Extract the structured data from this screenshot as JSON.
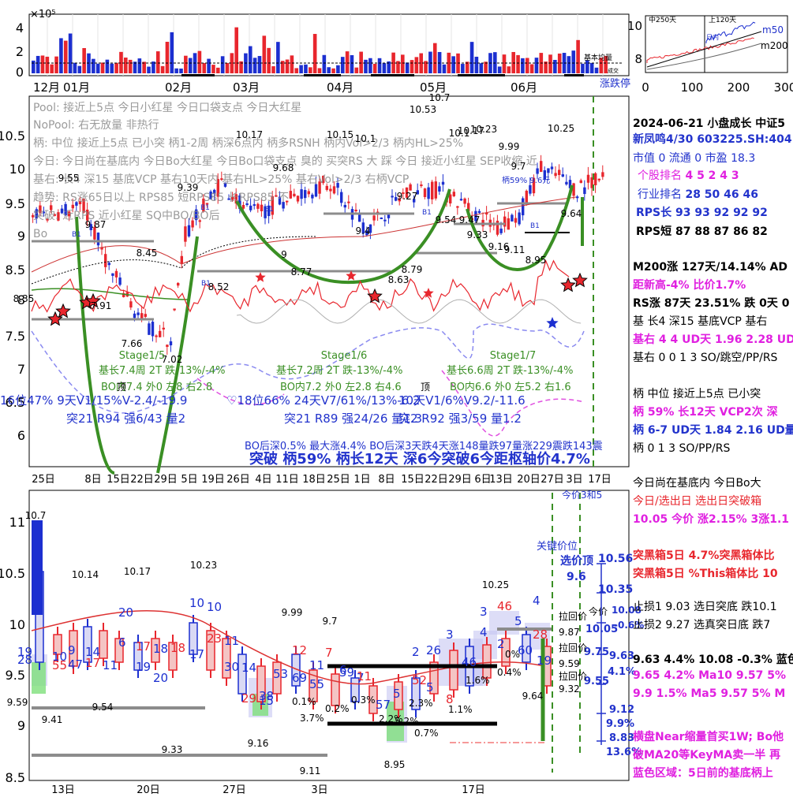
{
  "colors": {
    "up": "#e8262d",
    "down": "#1c2fd0",
    "green": "#3a8f24",
    "magenta": "#e020e0",
    "blue": "#2233cc",
    "gray": "#9a9a9a",
    "black": "#000000"
  },
  "volume_panel": {
    "exponent_label": "×10⁵",
    "yticks": [
      "4",
      "2",
      "0"
    ],
    "legend": [
      "基本均量",
      "成交"
    ]
  },
  "month_axis": [
    "12月",
    "01月",
    "02月",
    "03月",
    "04月",
    "05月",
    "06月"
  ],
  "zdt_label": "涨跌停",
  "mini_chart": {
    "yticks": [
      "10",
      "8"
    ],
    "xticks": [
      "0",
      "100",
      "200",
      "300"
    ],
    "labels": [
      "m50",
      "m200"
    ],
    "ann": [
      "中250天",
      "上120天",
      "日内"
    ]
  },
  "main_panel": {
    "yticks": [
      "10.5",
      "10",
      "9.5",
      "9",
      "8.5",
      "8",
      "7.5",
      "7",
      "6.5",
      "6"
    ],
    "xticks": [
      "25日",
      "8日",
      "15日",
      "22日",
      "29日",
      "5日",
      "19日",
      "26日",
      "4日",
      "11日",
      "18日",
      "25日",
      "1日",
      "8日",
      "15日",
      "22日",
      "29日",
      "6日",
      "13日",
      "20日",
      "27日",
      "3日",
      "17日"
    ],
    "gray_text": [
      "Pool: 接近上5点 今日小红星 今日口袋支点 今日大红星",
      "NoPool: 右无放量 非热行",
      "柄: 中位 接近上5点 已小突 柄1-2周 柄深6点内 柄多RSNH 柄内Vol>2/3 柄内HL>25%",
      "今日: 今日尚在基底内 今日Bo大红星 今日Bo口袋支点 臭的 买突RS 大 踩 今日 接近小红星 SEP收缩 近",
      "基右: 长4 深15 基底VCP 基右10天内 基右HL>25% 基右Vol>2/3 右柄VCP",
      "趋势: RS涨65日以上 RPS85 短RPS85 长RPS85 不",
      "突破: 近RPS 近小红星 SQ中BO/BO后",
      "Bo"
    ],
    "price_labels": [
      "10.7",
      "10.53",
      "10.17",
      "10.15",
      "10.1",
      "10.1",
      "10.17",
      "10.23",
      "9.99",
      "9.7",
      "10.25",
      "9.55",
      "9.68",
      "9.39",
      "9.27",
      "9.87",
      "8.45",
      "9.4",
      "8.52",
      "9",
      "8.77",
      "8.63",
      "8.79",
      "9.54",
      "9.47",
      "9.33",
      "9.16",
      "9.11",
      "8.95",
      "9.64",
      "8.35",
      "7.91",
      "7.66",
      "7.02"
    ],
    "b_markers": [
      "B1",
      "B1",
      "B1",
      "B1",
      "B1",
      "B1"
    ],
    "stages": [
      {
        "name": "Stage1/5",
        "line1": "基长7.4周 2T 跌-13%/-4%",
        "line2": "BO内7.4 外0 左8 右2.8"
      },
      {
        "name": "Stage1/6",
        "line1": "基长7.2周 2T 跌-13%/-4%",
        "line2": "BO内7.2 外0 左2.8 右4.6"
      },
      {
        "name": "Stage1/7",
        "line1": "基长6.6周 2T 跌-13%/-4%",
        "line2": "BO内6.6 外0 左5.2 右1.6"
      }
    ],
    "stat_lines": [
      "16位47%  9天V1/15%V-2.4/-19.9",
      "突21 R94 强6/43 量2",
      "♡18位66%  24天V7/61%/13%-6.2",
      "突21 R89 强24/26 量1.3",
      "10天V1/6%V9.2/-11.6",
      "突2 R92 强3/59 量1.2"
    ],
    "bottom_note": "BO后深0.5% 最大涨4.4% BO后深3天跌4天涨148量跌97量涨229震跌143震",
    "big_line": "突破 柄59% 柄长12天 深6今突破6今距枢轴价4.7%",
    "handle_label": "柄59% 9.6元",
    "top_labels": [
      "顶",
      "顶"
    ]
  },
  "lower_panel": {
    "yticks": [
      "11",
      "10.5",
      "10",
      "9.5",
      "9",
      "8.5"
    ],
    "xticks": [
      "13日",
      "20日",
      "27日",
      "3日",
      "17日"
    ],
    "price_labels": [
      "10.7",
      "10.14",
      "10.17",
      "10.23",
      "9.99",
      "9.7",
      "10.25",
      "9.59",
      "9.41",
      "9.54",
      "9.33",
      "9.16",
      "9.11",
      "8.95",
      "9.64"
    ],
    "box_nums": [
      "19",
      "28",
      "10",
      "55",
      "9",
      "47",
      "14",
      "17",
      "11",
      "20",
      "6",
      "17",
      "19",
      "18",
      "20",
      "18",
      "10",
      "17",
      "10",
      "23",
      "11",
      "30",
      "14",
      "29",
      "38",
      "15",
      "53",
      "12",
      "69",
      "11",
      "55",
      "7",
      "6",
      "59",
      "7",
      "11",
      "57",
      "5",
      "2",
      "52",
      "5",
      "26",
      "3",
      "8",
      "46",
      "3",
      "4",
      "46",
      "2",
      "5",
      "4",
      "28",
      "60",
      "19"
    ],
    "pct_labels": [
      "0.1%",
      "3.7%",
      "0.2%",
      "5.2%",
      "0.3%",
      "2.2%",
      "2.3%",
      "0.7%",
      "1.6%",
      "1.1%",
      "0.4%",
      "0%"
    ],
    "right_info": {
      "title": "今价3和5",
      "key": "关键价位",
      "sel_top": "选价顶",
      "p1": "10.56",
      "p2": "9.6",
      "p3": "10.35",
      "p4": "10.08",
      "p5": "-0.6%",
      "p6": "10.05",
      "p7": "9.75",
      "p8": "9.63",
      "p9": "4.1%",
      "p10": "9.55",
      "p11": "9.12",
      "p12": "9.9%",
      "p13": "8.83",
      "p14": "13.6%",
      "l1": "拉回价",
      "l2": "9.87",
      "l3": "拉回价",
      "l4": "9.59",
      "l5": "拉回价",
      "l6": "9.32",
      "l7": "今价"
    }
  },
  "side_panel": {
    "header": "2024-06-21 小盘成长 中证5",
    "stock": "新凤鸣4/30 603225.SH:404",
    "market": "市值 0  流通 0 市盈 18.3",
    "ranks": [
      {
        "label": "个股排名",
        "values": "4   5   2   4   3"
      },
      {
        "label": "行业排名",
        "values": "28   50   46   46"
      },
      {
        "label": "RPS长",
        "values": "93   93   92   92   92"
      },
      {
        "label": "RPS短",
        "values": "87   88   87   86   82"
      }
    ],
    "lines": [
      "M200涨 127天/14.14%  AD",
      "距新高-4%  比价1.7%",
      "RS涨 87天 23.51% 跌 0天 0",
      "基 长4 深15 基底VCP 基右",
      "基右 4 4 UD天 1.96 2.28 UD",
      "基右 0 0 1 3 SO/跳空/PP/RS",
      "柄 中位 接近上5点 已小突",
      "柄 59% 长12天  VCP2次 深",
      "柄 6-7 UD天 1.84 2.16 UD量",
      "柄 0 1 3 SO/PP/RS",
      "今日尚在基底内 今日Bo大",
      "今日/选出日  选出日突破箱",
      "10.05 今价  涨2.15% 3涨1.1",
      "突黑箱5日 4.7%突黑箱体比",
      "突黑箱5日 %This箱体比 10",
      "止损1 9.03 选日突底 跌10.1",
      "止损2 9.27 选真突日底 跌7",
      "9.63 4.4% 10.08 -0.3%  蓝色",
      "9.65  4.2% Ma10   9.57  5%",
      "9.9  1.5% Ma5    9.57  5% M",
      "横盘Near缩量首买1W; Bo他",
      "破MA20等KeyMA卖一半 再",
      "蓝色区域：5日前的基底柄上"
    ]
  }
}
